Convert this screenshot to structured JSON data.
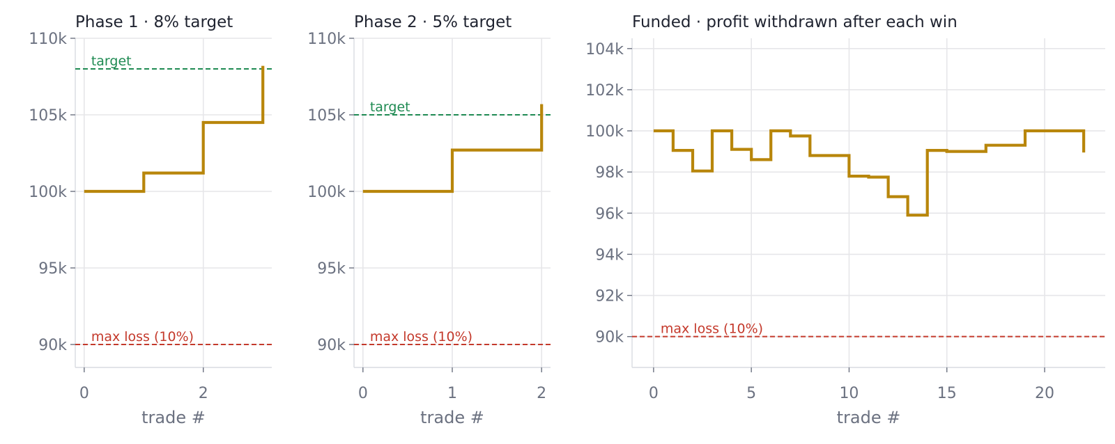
{
  "colors": {
    "series": "#b8860b",
    "target": "#1e8a52",
    "max_loss": "#c4392b"
  },
  "chart_data": [
    {
      "type": "line",
      "step": "post",
      "title": "Phase 1 · 8% target",
      "xlabel": "trade #",
      "ylabel": "",
      "x": [
        0,
        1,
        2,
        3
      ],
      "series": [
        {
          "values": [
            100000,
            101200,
            104500,
            108200
          ]
        }
      ],
      "xlim": [
        -0.15,
        3.15
      ],
      "ylim": [
        88500,
        110000
      ],
      "xticks": [
        0,
        2
      ],
      "xtick_labels": [
        "0",
        "2"
      ],
      "yticks": [
        90000,
        95000,
        100000,
        105000,
        110000
      ],
      "ytick_labels": [
        "90k",
        "95k",
        "100k",
        "105k",
        "110k"
      ],
      "grid": true,
      "reference_lines": [
        {
          "label": "target",
          "y": 108000,
          "kind": "target"
        },
        {
          "label": "max loss (10%)",
          "y": 90000,
          "kind": "max_loss"
        }
      ]
    },
    {
      "type": "line",
      "step": "post",
      "title": "Phase 2 · 5% target",
      "xlabel": "trade #",
      "ylabel": "",
      "x": [
        0,
        1,
        2
      ],
      "series": [
        {
          "values": [
            100000,
            102700,
            105700
          ]
        }
      ],
      "xlim": [
        -0.1,
        2.1
      ],
      "ylim": [
        88500,
        110000
      ],
      "xticks": [
        0,
        1,
        2
      ],
      "xtick_labels": [
        "0",
        "1",
        "2"
      ],
      "yticks": [
        90000,
        95000,
        100000,
        105000,
        110000
      ],
      "ytick_labels": [
        "90k",
        "95k",
        "100k",
        "105k",
        "110k"
      ],
      "grid": true,
      "reference_lines": [
        {
          "label": "target",
          "y": 105000,
          "kind": "target"
        },
        {
          "label": "max loss (10%)",
          "y": 90000,
          "kind": "max_loss"
        }
      ]
    },
    {
      "type": "line",
      "step": "post",
      "title": "Funded · profit withdrawn after each win",
      "xlabel": "trade #",
      "ylabel": "",
      "x": [
        0,
        1,
        2,
        3,
        4,
        5,
        6,
        7,
        8,
        9,
        10,
        11,
        12,
        13,
        14,
        15,
        16,
        17,
        18,
        19,
        20,
        21,
        22
      ],
      "series": [
        {
          "values": [
            100000,
            99050,
            98050,
            100000,
            99100,
            98600,
            100000,
            99750,
            98800,
            98800,
            97800,
            97750,
            96800,
            95900,
            99050,
            99000,
            99000,
            99300,
            99300,
            100000,
            100000,
            100000,
            98950
          ]
        }
      ],
      "xlim": [
        -1.1,
        23.1
      ],
      "ylim": [
        88500,
        104500
      ],
      "xticks": [
        0,
        5,
        10,
        15,
        20
      ],
      "xtick_labels": [
        "0",
        "5",
        "10",
        "15",
        "20"
      ],
      "yticks": [
        90000,
        92000,
        94000,
        96000,
        98000,
        100000,
        102000,
        104000
      ],
      "ytick_labels": [
        "90k",
        "92k",
        "94k",
        "96k",
        "98k",
        "100k",
        "102k",
        "104k"
      ],
      "grid": true,
      "reference_lines": [
        {
          "label": "max loss (10%)",
          "y": 90000,
          "kind": "max_loss"
        }
      ]
    }
  ]
}
